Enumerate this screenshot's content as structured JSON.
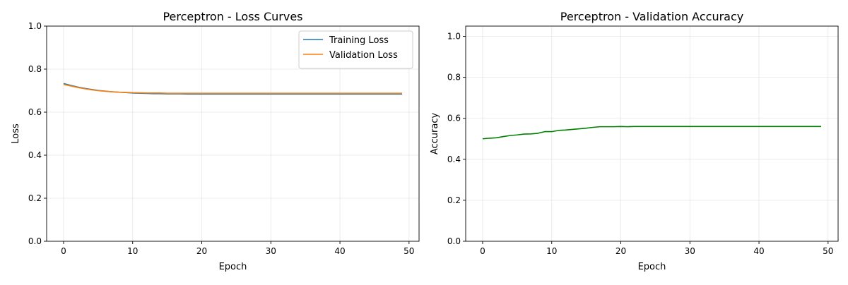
{
  "chart_data": [
    {
      "type": "line",
      "title": "Perceptron - Loss Curves",
      "xlabel": "Epoch",
      "ylabel": "Loss",
      "xlim": [
        -2.45,
        51.45
      ],
      "ylim": [
        0,
        1.0
      ],
      "xticks": [
        0,
        10,
        20,
        30,
        40,
        50
      ],
      "yticks": [
        0.0,
        0.2,
        0.4,
        0.6,
        0.8,
        1.0
      ],
      "xtick_labels": [
        "0",
        "10",
        "20",
        "30",
        "40",
        "50"
      ],
      "ytick_labels": [
        "0.0",
        "0.2",
        "0.4",
        "0.6",
        "0.8",
        "1.0"
      ],
      "grid": true,
      "legend": "top-right",
      "x": [
        0,
        1,
        2,
        3,
        4,
        5,
        6,
        7,
        8,
        9,
        10,
        11,
        12,
        13,
        14,
        15,
        16,
        17,
        18,
        19,
        20,
        21,
        22,
        23,
        24,
        25,
        26,
        27,
        28,
        29,
        30,
        31,
        32,
        33,
        34,
        35,
        36,
        37,
        38,
        39,
        40,
        41,
        42,
        43,
        44,
        45,
        46,
        47,
        48,
        49
      ],
      "series": [
        {
          "name": "Training Loss",
          "color": "#1f77b4",
          "values": [
            0.733,
            0.725,
            0.717,
            0.711,
            0.706,
            0.701,
            0.698,
            0.695,
            0.693,
            0.691,
            0.689,
            0.688,
            0.687,
            0.686,
            0.686,
            0.685,
            0.685,
            0.685,
            0.684,
            0.684,
            0.684,
            0.684,
            0.684,
            0.684,
            0.684,
            0.684,
            0.684,
            0.684,
            0.684,
            0.684,
            0.684,
            0.684,
            0.684,
            0.684,
            0.684,
            0.684,
            0.684,
            0.684,
            0.684,
            0.684,
            0.684,
            0.684,
            0.684,
            0.684,
            0.684,
            0.684,
            0.684,
            0.684,
            0.684,
            0.684
          ]
        },
        {
          "name": "Validation Loss",
          "color": "#ff7f0e",
          "values": [
            0.729,
            0.722,
            0.715,
            0.709,
            0.704,
            0.7,
            0.697,
            0.695,
            0.693,
            0.692,
            0.691,
            0.69,
            0.689,
            0.689,
            0.689,
            0.688,
            0.688,
            0.688,
            0.688,
            0.688,
            0.688,
            0.688,
            0.688,
            0.688,
            0.688,
            0.688,
            0.688,
            0.688,
            0.688,
            0.688,
            0.688,
            0.688,
            0.688,
            0.688,
            0.688,
            0.688,
            0.688,
            0.688,
            0.688,
            0.688,
            0.688,
            0.688,
            0.688,
            0.688,
            0.688,
            0.688,
            0.688,
            0.688,
            0.688,
            0.688
          ]
        }
      ]
    },
    {
      "type": "line",
      "title": "Perceptron - Validation Accuracy",
      "xlabel": "Epoch",
      "ylabel": "Accuracy",
      "xlim": [
        -2.45,
        51.45
      ],
      "ylim": [
        0,
        1.05
      ],
      "xticks": [
        0,
        10,
        20,
        30,
        40,
        50
      ],
      "yticks": [
        0.0,
        0.2,
        0.4,
        0.6,
        0.8,
        1.0
      ],
      "xtick_labels": [
        "0",
        "10",
        "20",
        "30",
        "40",
        "50"
      ],
      "ytick_labels": [
        "0.0",
        "0.2",
        "0.4",
        "0.6",
        "0.8",
        "1.0"
      ],
      "grid": true,
      "x": [
        0,
        1,
        2,
        3,
        4,
        5,
        6,
        7,
        8,
        9,
        10,
        11,
        12,
        13,
        14,
        15,
        16,
        17,
        18,
        19,
        20,
        21,
        22,
        23,
        24,
        25,
        26,
        27,
        28,
        29,
        30,
        31,
        32,
        33,
        34,
        35,
        36,
        37,
        38,
        39,
        40,
        41,
        42,
        43,
        44,
        45,
        46,
        47,
        48,
        49
      ],
      "series": [
        {
          "color": "#008000",
          "values": [
            0.5,
            0.503,
            0.505,
            0.511,
            0.516,
            0.519,
            0.523,
            0.524,
            0.527,
            0.535,
            0.535,
            0.541,
            0.543,
            0.546,
            0.549,
            0.552,
            0.556,
            0.559,
            0.559,
            0.559,
            0.56,
            0.559,
            0.56,
            0.56,
            0.56,
            0.56,
            0.56,
            0.56,
            0.56,
            0.56,
            0.56,
            0.56,
            0.56,
            0.56,
            0.56,
            0.56,
            0.56,
            0.56,
            0.56,
            0.56,
            0.56,
            0.56,
            0.56,
            0.56,
            0.56,
            0.56,
            0.56,
            0.56,
            0.56,
            0.56
          ]
        }
      ]
    }
  ]
}
